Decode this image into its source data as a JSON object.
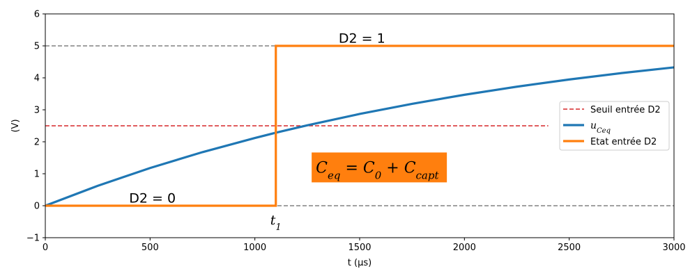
{
  "chart_data": {
    "type": "line",
    "xlabel": "t (µs)",
    "ylabel": "(V)",
    "xlim": [
      0,
      3000
    ],
    "ylim": [
      -1,
      6
    ],
    "x_ticks": [
      0,
      500,
      1000,
      1500,
      2000,
      2500,
      3000
    ],
    "y_ticks": [
      -1,
      0,
      1,
      2,
      3,
      4,
      5,
      6
    ],
    "grid": false,
    "legend_position": "center-right",
    "series": [
      {
        "name": "Seuil entrée D2",
        "style": "dashed",
        "color": "#d62728",
        "x": [
          0,
          2400
        ],
        "y": [
          2.5,
          2.5
        ]
      },
      {
        "name": "u_Ceq",
        "legend_label_main": "u",
        "legend_label_sub": "Ceq",
        "style": "solid",
        "color": "#1f77b4",
        "x": [
          0,
          250,
          500,
          750,
          1000,
          1100,
          1250,
          1500,
          1750,
          2000,
          2250,
          2500,
          2750,
          3000
        ],
        "y": [
          0,
          0.623,
          1.18,
          1.676,
          2.119,
          2.283,
          2.514,
          2.87,
          3.187,
          3.47,
          3.723,
          3.948,
          4.149,
          4.328
        ]
      },
      {
        "name": "Etat entrée D2",
        "style": "solid",
        "color": "#ff7f0e",
        "x": [
          0,
          1100,
          1100,
          3000
        ],
        "y": [
          0,
          0,
          5,
          5
        ]
      }
    ],
    "reference_lines": [
      {
        "y": 5,
        "color": "#808080",
        "style": "dashed",
        "x_range": [
          0,
          3000
        ]
      },
      {
        "y": 0,
        "color": "#808080",
        "style": "dashed",
        "x_range": [
          0,
          3000
        ]
      }
    ],
    "annotations": {
      "d2_zero": {
        "text": "D2 = 0",
        "x": 400,
        "y": 0.1
      },
      "d2_one": {
        "text": "D2 = 1",
        "x": 1400,
        "y": 5.1
      },
      "t1": {
        "main": "t",
        "sub": "1",
        "x": 1100,
        "y": -0.5
      },
      "formula": {
        "x": 1700,
        "y": 1.1,
        "background": "#ff7f0e",
        "parts": [
          {
            "main": "C",
            "sub": "eq"
          },
          {
            "op": " = "
          },
          {
            "main": "C",
            "sub": "0"
          },
          {
            "op": " + "
          },
          {
            "main": "C",
            "sub": "capt"
          }
        ]
      }
    }
  }
}
